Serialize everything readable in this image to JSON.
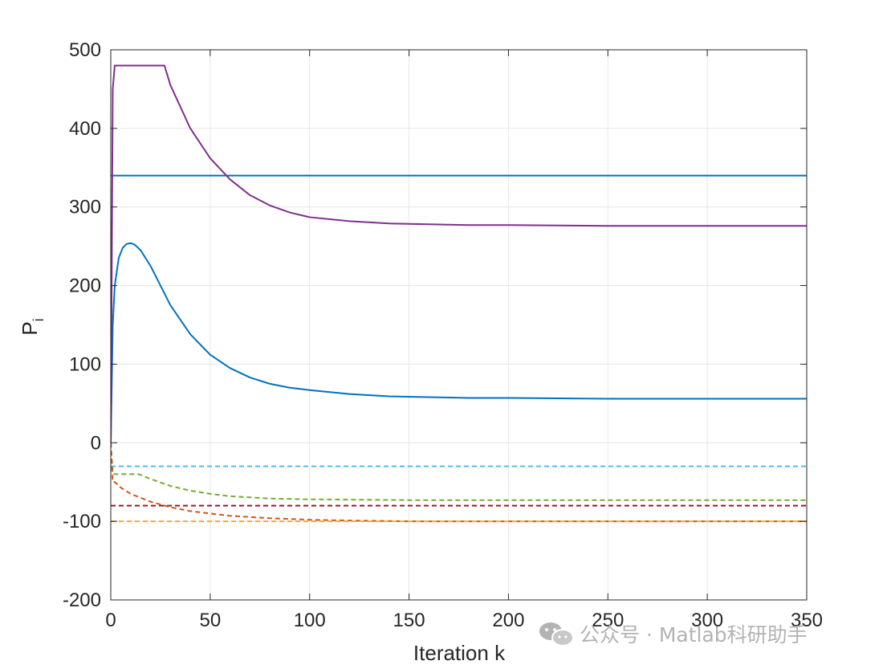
{
  "chart_data": {
    "type": "line",
    "title": "",
    "xlabel": "Iteration k",
    "ylabel": "P",
    "ylabel_subscript": "i",
    "xlim": [
      0,
      350
    ],
    "ylim": [
      -200,
      500
    ],
    "xticks": [
      0,
      50,
      100,
      150,
      200,
      250,
      300,
      350
    ],
    "yticks": [
      -200,
      -100,
      0,
      100,
      200,
      300,
      400,
      500
    ],
    "grid": true,
    "legend": "none",
    "series": [
      {
        "color": "#0072BD",
        "style": "solid",
        "x": [
          0,
          1,
          2,
          4,
          6,
          8,
          10,
          12,
          15,
          20,
          25,
          30,
          40,
          50,
          60,
          70,
          80,
          90,
          100,
          120,
          140,
          160,
          180,
          200,
          250,
          300,
          350
        ],
        "y": [
          0,
          150,
          200,
          235,
          248,
          253,
          254,
          252,
          245,
          225,
          200,
          175,
          138,
          112,
          95,
          83,
          75,
          70,
          67,
          62,
          59,
          58,
          57,
          57,
          56,
          56,
          56
        ]
      },
      {
        "color": "#0072BD",
        "style": "solid",
        "x": [
          0,
          1,
          350
        ],
        "y": [
          340,
          340,
          340
        ]
      },
      {
        "color": "#7E2F8E",
        "style": "solid",
        "x": [
          0,
          1,
          2,
          5,
          10,
          20,
          27,
          30,
          40,
          50,
          60,
          70,
          80,
          90,
          100,
          120,
          140,
          160,
          180,
          200,
          250,
          300,
          350
        ],
        "y": [
          0,
          450,
          480,
          480,
          480,
          480,
          480,
          455,
          400,
          362,
          335,
          315,
          302,
          293,
          287,
          282,
          279,
          278,
          277,
          277,
          276,
          276,
          276
        ]
      },
      {
        "color": "#4DBEEE",
        "style": "dashed",
        "x": [
          0,
          1,
          350
        ],
        "y": [
          -30,
          -30,
          -30
        ]
      },
      {
        "color": "#77AC30",
        "style": "dashed",
        "x": [
          0,
          1,
          2,
          5,
          10,
          14,
          20,
          30,
          40,
          50,
          60,
          80,
          100,
          150,
          200,
          250,
          300,
          350
        ],
        "y": [
          0,
          -40,
          -40,
          -40,
          -40,
          -40,
          -46,
          -55,
          -61,
          -65,
          -68,
          -71,
          -72,
          -73,
          -73,
          -73,
          -73,
          -73
        ]
      },
      {
        "color": "#A2142F",
        "style": "dashed",
        "x": [
          0,
          1,
          350
        ],
        "y": [
          -80,
          -80,
          -80
        ]
      },
      {
        "color": "#D95319",
        "style": "dashed",
        "x": [
          0,
          1,
          2,
          5,
          10,
          20,
          30,
          40,
          50,
          60,
          80,
          100,
          120,
          150,
          200,
          250,
          300,
          350
        ],
        "y": [
          0,
          -50,
          -50,
          -57,
          -65,
          -75,
          -82,
          -87,
          -90,
          -93,
          -96,
          -98,
          -99,
          -100,
          -100,
          -100,
          -100,
          -100
        ]
      },
      {
        "color": "#EDB120",
        "style": "dashed",
        "x": [
          0,
          1,
          350
        ],
        "y": [
          -100,
          -100,
          -100
        ]
      }
    ]
  },
  "watermark": {
    "text": "公众号 · Matlab科研助手",
    "icon": "wechat-icon"
  }
}
